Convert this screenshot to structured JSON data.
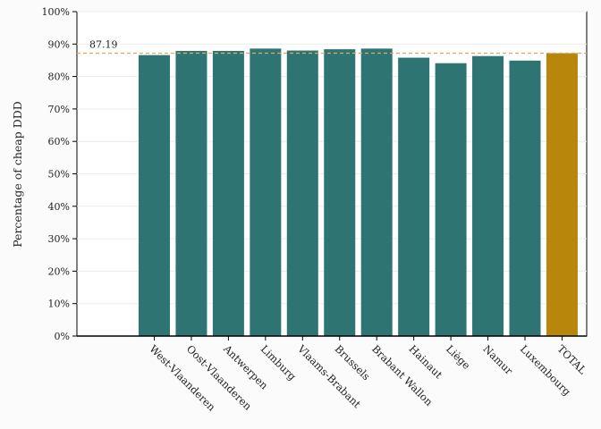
{
  "chart_data": {
    "type": "bar",
    "title": "",
    "xlabel": "",
    "ylabel": "Percentage of cheap DDD",
    "ylim": [
      0,
      100
    ],
    "yticks": [
      "0%",
      "10%",
      "20%",
      "30%",
      "40%",
      "50%",
      "60%",
      "70%",
      "80%",
      "90%",
      "100%"
    ],
    "categories": [
      "West-Vlaanderen",
      "Oost-Vlaanderen",
      "Antwerpen",
      "Limburg",
      "Vlaams-Brabant",
      "Brussels",
      "Brabant Wallon",
      "Hainaut",
      "Liège",
      "Namur",
      "Luxembourg",
      "TOTAL"
    ],
    "values": [
      86.6,
      87.9,
      87.9,
      88.6,
      88.0,
      88.4,
      88.6,
      85.8,
      84.1,
      86.3,
      84.9,
      87.19
    ],
    "highlight_category": "TOTAL",
    "reference_line": {
      "value": 87.19,
      "label": "87.19"
    },
    "grid": true,
    "colors": {
      "bar": "#2e7472",
      "highlight": "#b8860b",
      "reference": "#e0a860"
    }
  }
}
